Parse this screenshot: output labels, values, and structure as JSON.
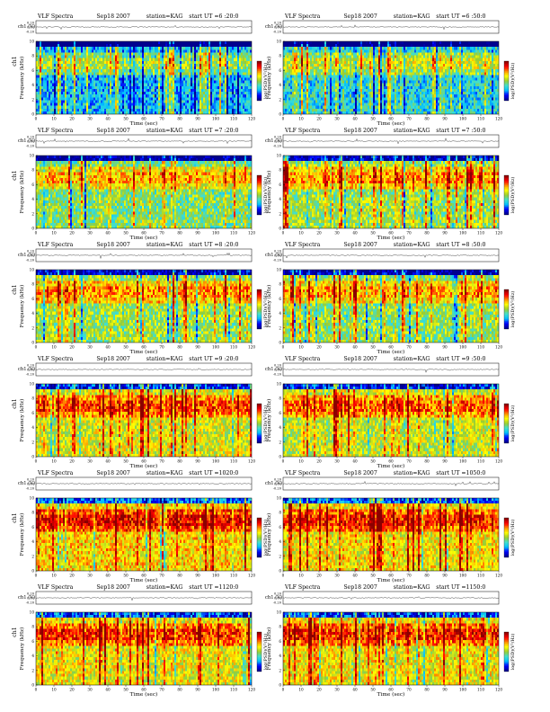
{
  "page": {
    "title": "VLF Spectra"
  },
  "chart_data": [
    {
      "type": "heatmap",
      "title": "VLF Spectra",
      "date": "Sep18 2007",
      "station": "station=KAG",
      "start": "start  UT =6 :20:0",
      "xlabel": "Time (sec)",
      "ylabel_top": "ch1 (V)",
      "ylabel": "Frequency (kHz)",
      "channel": "ch1",
      "colorbar_label": "log(PSD)(V²/Hz)",
      "xlim": [
        0,
        120
      ],
      "ylim": [
        0,
        10
      ],
      "xticks": [
        "0",
        "10",
        "20",
        "30",
        "40",
        "50",
        "60",
        "70",
        "80",
        "90",
        "100",
        "110",
        "120"
      ],
      "yticks": [
        "0",
        "2",
        "4",
        "6",
        "8",
        "10"
      ],
      "amp_ticks": [
        "0.20",
        "0.00",
        "-0.20"
      ],
      "colormap": [
        "#00008f",
        "#0000ff",
        "#00bfff",
        "#40e0d0",
        "#9acd32",
        "#ffff00",
        "#ff8c00",
        "#ff0000",
        "#8b0000"
      ],
      "intensity": 0.28
    },
    {
      "type": "heatmap",
      "title": "VLF Spectra",
      "date": "Sep18 2007",
      "station": "station=KAG",
      "start": "start  UT =6 :50:0",
      "xlabel": "Time (sec)",
      "ylabel_top": "ch1 (V)",
      "ylabel": "Frequency (kHz)",
      "channel": "",
      "colorbar_label": "log(PSD)(V²/Hz)",
      "xlim": [
        0,
        120
      ],
      "ylim": [
        0,
        10
      ],
      "xticks": [
        "0",
        "10",
        "20",
        "30",
        "40",
        "50",
        "60",
        "70",
        "80",
        "90",
        "100",
        "110",
        "120"
      ],
      "yticks": [
        "0",
        "2",
        "4",
        "6",
        "8",
        "10"
      ],
      "amp_ticks": [
        "0.20",
        "0.00",
        "-0.20"
      ],
      "colormap": [
        "#00008f",
        "#0000ff",
        "#00bfff",
        "#40e0d0",
        "#9acd32",
        "#ffff00",
        "#ff8c00",
        "#ff0000",
        "#8b0000"
      ],
      "intensity": 0.33
    },
    {
      "type": "heatmap",
      "title": "VLF Spectra",
      "date": "Sep18 2007",
      "station": "station=KAG",
      "start": "start  UT =7 :20:0",
      "xlabel": "Time (sec)",
      "ylabel_top": "ch1 (V)",
      "ylabel": "Frequency (kHz)",
      "channel": "ch1",
      "colorbar_label": "log(PSD)(V²/Hz)",
      "xlim": [
        0,
        120
      ],
      "ylim": [
        0,
        10
      ],
      "xticks": [
        "0",
        "10",
        "20",
        "30",
        "40",
        "50",
        "60",
        "70",
        "80",
        "90",
        "100",
        "110",
        "120"
      ],
      "yticks": [
        "0",
        "2",
        "4",
        "6",
        "8",
        "10"
      ],
      "amp_ticks": [
        "0.20",
        "0.00",
        "-0.20"
      ],
      "colormap": [
        "#00008f",
        "#0000ff",
        "#00bfff",
        "#40e0d0",
        "#9acd32",
        "#ffff00",
        "#ff8c00",
        "#ff0000",
        "#8b0000"
      ],
      "intensity": 0.45
    },
    {
      "type": "heatmap",
      "title": "VLF Spectra",
      "date": "Sep18 2007",
      "station": "station=KAG",
      "start": "start  UT =7 :50:0",
      "xlabel": "Time (sec)",
      "ylabel_top": "ch1 (V)",
      "ylabel": "Frequency (kHz)",
      "channel": "",
      "colorbar_label": "log(PSD)(V²/Hz)",
      "xlim": [
        0,
        120
      ],
      "ylim": [
        0,
        10
      ],
      "xticks": [
        "0",
        "10",
        "20",
        "30",
        "40",
        "50",
        "60",
        "70",
        "80",
        "90",
        "100",
        "110",
        "120"
      ],
      "yticks": [
        "0",
        "2",
        "4",
        "6",
        "8",
        "10"
      ],
      "amp_ticks": [
        "0.20",
        "0.00",
        "-0.20"
      ],
      "colormap": [
        "#00008f",
        "#0000ff",
        "#00bfff",
        "#40e0d0",
        "#9acd32",
        "#ffff00",
        "#ff8c00",
        "#ff0000",
        "#8b0000"
      ],
      "intensity": 0.5
    },
    {
      "type": "heatmap",
      "title": "VLF Spectra",
      "date": "Sep18 2007",
      "station": "station=KAG",
      "start": "start  UT =8 :20:0",
      "xlabel": "Time (sec)",
      "ylabel_top": "ch1 (V)",
      "ylabel": "Frequency (kHz)",
      "channel": "ch1",
      "colorbar_label": "log(PSD)(V²/Hz)",
      "xlim": [
        0,
        120
      ],
      "ylim": [
        0,
        10
      ],
      "xticks": [
        "0",
        "10",
        "20",
        "30",
        "40",
        "50",
        "60",
        "70",
        "80",
        "90",
        "100",
        "110",
        "120"
      ],
      "yticks": [
        "0",
        "2",
        "4",
        "6",
        "8",
        "10"
      ],
      "amp_ticks": [
        "0.20",
        "0.00",
        "-0.20"
      ],
      "colormap": [
        "#00008f",
        "#0000ff",
        "#00bfff",
        "#40e0d0",
        "#9acd32",
        "#ffff00",
        "#ff8c00",
        "#ff0000",
        "#8b0000"
      ],
      "intensity": 0.5
    },
    {
      "type": "heatmap",
      "title": "VLF Spectra",
      "date": "Sep18 2007",
      "station": "station=KAG",
      "start": "start  UT =8 :50:0",
      "xlabel": "Time (sec)",
      "ylabel_top": "ch1 (V)",
      "ylabel": "Frequency (kHz)",
      "channel": "",
      "colorbar_label": "log(PSD)(V²/Hz)",
      "xlim": [
        0,
        120
      ],
      "ylim": [
        0,
        10
      ],
      "xticks": [
        "0",
        "10",
        "20",
        "30",
        "40",
        "50",
        "60",
        "70",
        "80",
        "90",
        "100",
        "110",
        "120"
      ],
      "yticks": [
        "0",
        "2",
        "4",
        "6",
        "8",
        "10"
      ],
      "amp_ticks": [
        "0.20",
        "0.00",
        "-0.20"
      ],
      "colormap": [
        "#00008f",
        "#0000ff",
        "#00bfff",
        "#40e0d0",
        "#9acd32",
        "#ffff00",
        "#ff8c00",
        "#ff0000",
        "#8b0000"
      ],
      "intensity": 0.48
    },
    {
      "type": "heatmap",
      "title": "VLF Spectra",
      "date": "Sep18 2007",
      "station": "station=KAG",
      "start": "start  UT =9 :20:0",
      "xlabel": "Time (sec)",
      "ylabel_top": "ch1 (V)",
      "ylabel": "Frequency (kHz)",
      "channel": "ch1",
      "colorbar_label": "log(PSD)(V²/Hz)",
      "xlim": [
        0,
        120
      ],
      "ylim": [
        0,
        10
      ],
      "xticks": [
        "0",
        "10",
        "20",
        "30",
        "40",
        "50",
        "60",
        "70",
        "80",
        "90",
        "100",
        "110",
        "120"
      ],
      "yticks": [
        "0",
        "2",
        "4",
        "6",
        "8",
        "10"
      ],
      "amp_ticks": [
        "0.20",
        "0.00",
        "-0.20"
      ],
      "colormap": [
        "#00008f",
        "#0000ff",
        "#00bfff",
        "#40e0d0",
        "#9acd32",
        "#ffff00",
        "#ff8c00",
        "#ff0000",
        "#8b0000"
      ],
      "intensity": 0.58
    },
    {
      "type": "heatmap",
      "title": "VLF Spectra",
      "date": "Sep18 2007",
      "station": "station=KAG",
      "start": "start  UT =9 :50:0",
      "xlabel": "Time (sec)",
      "ylabel_top": "ch1 (V)",
      "ylabel": "Frequency (kHz)",
      "channel": "",
      "colorbar_label": "log(PSD)(V²/Hz)",
      "xlim": [
        0,
        120
      ],
      "ylim": [
        0,
        10
      ],
      "xticks": [
        "0",
        "10",
        "20",
        "30",
        "40",
        "50",
        "60",
        "70",
        "80",
        "90",
        "100",
        "110",
        "120"
      ],
      "yticks": [
        "0",
        "2",
        "4",
        "6",
        "8",
        "10"
      ],
      "amp_ticks": [
        "0.20",
        "0.00",
        "-0.20"
      ],
      "colormap": [
        "#00008f",
        "#0000ff",
        "#00bfff",
        "#40e0d0",
        "#9acd32",
        "#ffff00",
        "#ff8c00",
        "#ff0000",
        "#8b0000"
      ],
      "intensity": 0.55
    },
    {
      "type": "heatmap",
      "title": "VLF Spectra",
      "date": "Sep18 2007",
      "station": "station=KAG",
      "start": "start  UT =1020:0",
      "xlabel": "Time (sec)",
      "ylabel_top": "ch1 (V)",
      "ylabel": "Frequency (kHz)",
      "channel": "ch1",
      "colorbar_label": "log(PSD)(V²/Hz)",
      "xlim": [
        0,
        120
      ],
      "ylim": [
        0,
        10
      ],
      "xticks": [
        "0",
        "10",
        "20",
        "30",
        "40",
        "50",
        "60",
        "70",
        "80",
        "90",
        "100",
        "110",
        "120"
      ],
      "yticks": [
        "0",
        "2",
        "4",
        "6",
        "8",
        "10"
      ],
      "amp_ticks": [
        "0.20",
        "0.00",
        "-0.20"
      ],
      "colormap": [
        "#00008f",
        "#0000ff",
        "#00bfff",
        "#40e0d0",
        "#9acd32",
        "#ffff00",
        "#ff8c00",
        "#ff0000",
        "#8b0000"
      ],
      "intensity": 0.66
    },
    {
      "type": "heatmap",
      "title": "VLF Spectra",
      "date": "Sep18 2007",
      "station": "station=KAG",
      "start": "start  UT =1050:0",
      "xlabel": "Time (sec)",
      "ylabel_top": "ch1 (V)",
      "ylabel": "Frequency (kHz)",
      "channel": "",
      "colorbar_label": "log(PSD)(V²/Hz)",
      "xlim": [
        0,
        120
      ],
      "ylim": [
        0,
        10
      ],
      "xticks": [
        "0",
        "10",
        "20",
        "30",
        "40",
        "50",
        "60",
        "70",
        "80",
        "90",
        "100",
        "110",
        "120"
      ],
      "yticks": [
        "0",
        "2",
        "4",
        "6",
        "8",
        "10"
      ],
      "amp_ticks": [
        "0.20",
        "0.00",
        "-0.20"
      ],
      "colormap": [
        "#00008f",
        "#0000ff",
        "#00bfff",
        "#40e0d0",
        "#9acd32",
        "#ffff00",
        "#ff8c00",
        "#ff0000",
        "#8b0000"
      ],
      "intensity": 0.62
    },
    {
      "type": "heatmap",
      "title": "VLF Spectra",
      "date": "Sep18 2007",
      "station": "station=KAG",
      "start": "start  UT =1120:0",
      "xlabel": "Time (sec)",
      "ylabel_top": "ch1 (V)",
      "ylabel": "Frequency (kHz)",
      "channel": "ch1",
      "colorbar_label": "log(PSD)(V²/Hz)",
      "xlim": [
        0,
        120
      ],
      "ylim": [
        0,
        10
      ],
      "xticks": [
        "0",
        "10",
        "20",
        "30",
        "40",
        "50",
        "60",
        "70",
        "80",
        "90",
        "100",
        "110",
        "120"
      ],
      "yticks": [
        "0",
        "2",
        "4",
        "6",
        "8",
        "10"
      ],
      "amp_ticks": [
        "0.20",
        "0.00",
        "-0.20"
      ],
      "colormap": [
        "#00008f",
        "#0000ff",
        "#00bfff",
        "#40e0d0",
        "#9acd32",
        "#ffff00",
        "#ff8c00",
        "#ff0000",
        "#8b0000"
      ],
      "intensity": 0.6
    },
    {
      "type": "heatmap",
      "title": "VLF Spectra",
      "date": "Sep18 2007",
      "station": "station=KAG",
      "start": "start  UT =1150:0",
      "xlabel": "Time (sec)",
      "ylabel_top": "ch1 (V)",
      "ylabel": "Frequency (kHz)",
      "channel": "",
      "colorbar_label": "log(PSD)(V²/Hz)",
      "xlim": [
        0,
        120
      ],
      "ylim": [
        0,
        10
      ],
      "xticks": [
        "0",
        "10",
        "20",
        "30",
        "40",
        "50",
        "60",
        "70",
        "80",
        "90",
        "100",
        "110",
        "120"
      ],
      "yticks": [
        "0",
        "2",
        "4",
        "6",
        "8",
        "10"
      ],
      "amp_ticks": [
        "0.20",
        "0.00",
        "-0.20"
      ],
      "colormap": [
        "#00008f",
        "#0000ff",
        "#00bfff",
        "#40e0d0",
        "#9acd32",
        "#ffff00",
        "#ff8c00",
        "#ff0000",
        "#8b0000"
      ],
      "intensity": 0.62
    }
  ]
}
